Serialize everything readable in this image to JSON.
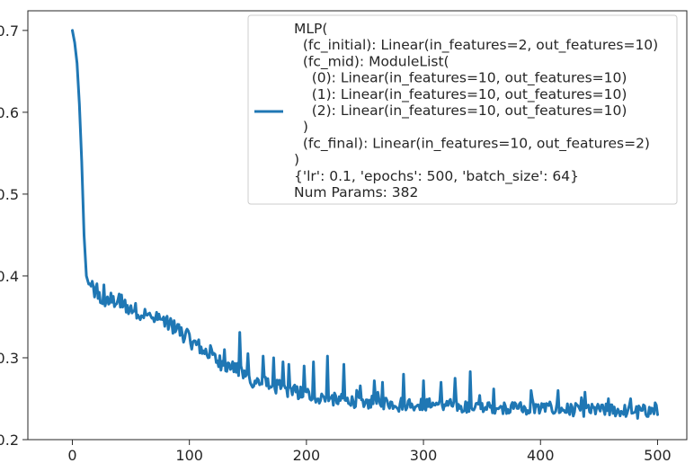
{
  "chart_data": {
    "type": "line",
    "title": "",
    "xlabel": "",
    "ylabel": "",
    "xlim": [
      -38,
      525
    ],
    "ylim": [
      0.2,
      0.724
    ],
    "x_ticks": [
      0,
      100,
      200,
      300,
      400,
      500
    ],
    "y_ticks": [
      0.2,
      0.3,
      0.4,
      0.5,
      0.6,
      0.7
    ],
    "x_tick_labels": [
      "0",
      "100",
      "200",
      "300",
      "400",
      "500"
    ],
    "y_tick_labels": [
      "0.2",
      "0.3",
      "0.4",
      "0.5",
      "0.6",
      "0.7"
    ],
    "grid": false,
    "legend_position": "top-right",
    "line_color": "#1f77b4",
    "series": [
      {
        "legend_lines": [
          "MLP(",
          "  (fc_initial): Linear(in_features=2, out_features=10)",
          "  (fc_mid): ModuleList(",
          "    (0): Linear(in_features=10, out_features=10)",
          "    (1): Linear(in_features=10, out_features=10)",
          "    (2): Linear(in_features=10, out_features=10)",
          "  )",
          "  (fc_final): Linear(in_features=10, out_features=2)",
          ")",
          "{'lr': 0.1, 'epochs': 500, 'batch_size': 64}",
          "Num Params: 382"
        ],
        "keypoints": [
          [
            0,
            0.7
          ],
          [
            2,
            0.685
          ],
          [
            4,
            0.66
          ],
          [
            6,
            0.61
          ],
          [
            8,
            0.54
          ],
          [
            10,
            0.45
          ],
          [
            12,
            0.4
          ],
          [
            14,
            0.39
          ],
          [
            16,
            0.385
          ],
          [
            18,
            0.383
          ],
          [
            20,
            0.378
          ],
          [
            25,
            0.372
          ],
          [
            30,
            0.37
          ],
          [
            40,
            0.368
          ],
          [
            50,
            0.36
          ],
          [
            60,
            0.355
          ],
          [
            70,
            0.348
          ],
          [
            80,
            0.342
          ],
          [
            90,
            0.335
          ],
          [
            100,
            0.322
          ],
          [
            110,
            0.312
          ],
          [
            120,
            0.3
          ],
          [
            130,
            0.292
          ],
          [
            140,
            0.285
          ],
          [
            150,
            0.275
          ],
          [
            160,
            0.27
          ],
          [
            170,
            0.266
          ],
          [
            180,
            0.262
          ],
          [
            190,
            0.258
          ],
          [
            200,
            0.255
          ],
          [
            210,
            0.252
          ],
          [
            220,
            0.25
          ],
          [
            230,
            0.248
          ],
          [
            240,
            0.247
          ],
          [
            250,
            0.246
          ],
          [
            260,
            0.245
          ],
          [
            270,
            0.245
          ],
          [
            280,
            0.244
          ],
          [
            290,
            0.244
          ],
          [
            300,
            0.243
          ],
          [
            320,
            0.242
          ],
          [
            340,
            0.241
          ],
          [
            360,
            0.24
          ],
          [
            380,
            0.239
          ],
          [
            400,
            0.238
          ],
          [
            420,
            0.237
          ],
          [
            440,
            0.236
          ],
          [
            460,
            0.236
          ],
          [
            480,
            0.235
          ],
          [
            500,
            0.235
          ]
        ],
        "spikes": [
          [
            40,
            0.378
          ],
          [
            64,
            0.352
          ],
          [
            78,
            0.35
          ],
          [
            98,
            0.335
          ],
          [
            118,
            0.315
          ],
          [
            130,
            0.31
          ],
          [
            143,
            0.331
          ],
          [
            150,
            0.305
          ],
          [
            163,
            0.302
          ],
          [
            172,
            0.3
          ],
          [
            180,
            0.295
          ],
          [
            185,
            0.292
          ],
          [
            198,
            0.29
          ],
          [
            206,
            0.295
          ],
          [
            218,
            0.302
          ],
          [
            232,
            0.292
          ],
          [
            258,
            0.272
          ],
          [
            265,
            0.27
          ],
          [
            283,
            0.28
          ],
          [
            300,
            0.272
          ],
          [
            315,
            0.27
          ],
          [
            327,
            0.275
          ],
          [
            340,
            0.283
          ],
          [
            360,
            0.262
          ],
          [
            392,
            0.26
          ],
          [
            415,
            0.26
          ],
          [
            438,
            0.258
          ],
          [
            458,
            0.25
          ],
          [
            477,
            0.25
          ],
          [
            498,
            0.245
          ]
        ],
        "noise": 0.008
      }
    ]
  }
}
